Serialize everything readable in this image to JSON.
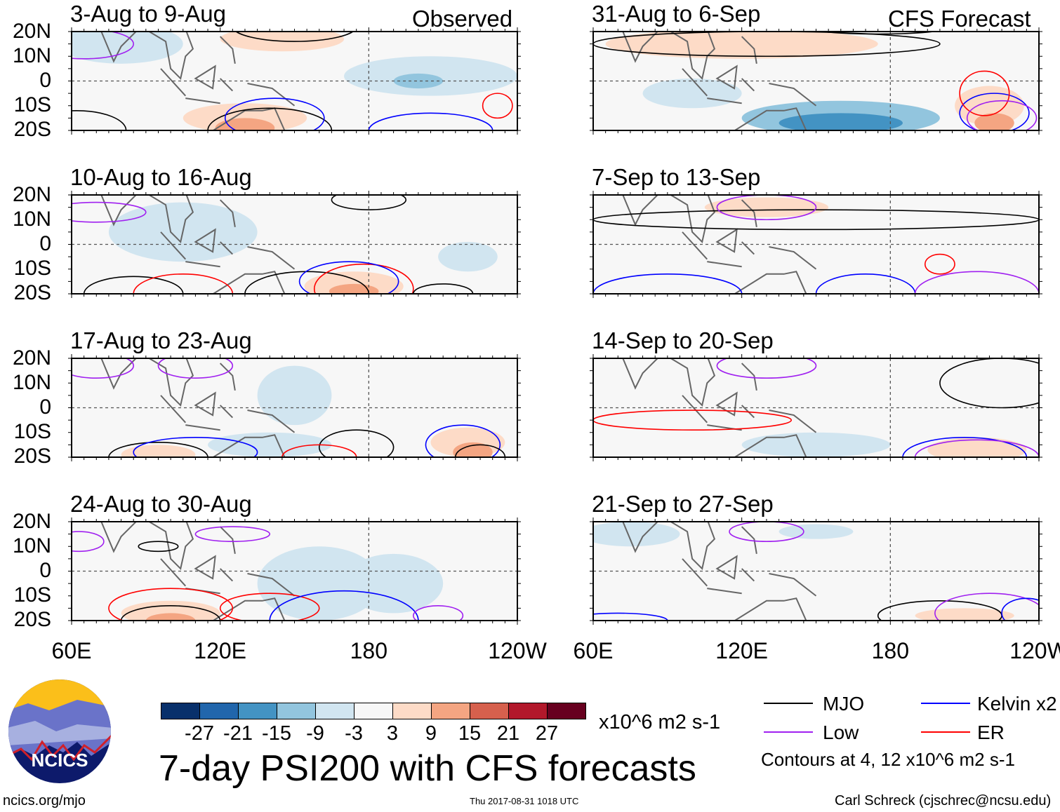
{
  "chart_data": {
    "type": "heatmap",
    "title": "7-day PSI200 with CFS forecasts",
    "units": "x10^6 m2 s-1",
    "column_headers": [
      "Observed",
      "CFS Forecast"
    ],
    "x_ticks": [
      "60E",
      "120E",
      "180",
      "120W"
    ],
    "y_ticks": [
      "20N",
      "10N",
      "0",
      "10S",
      "20S"
    ],
    "xlim_deg_east": [
      60,
      240
    ],
    "ylim_deg": [
      -20,
      20
    ],
    "colorbar": {
      "labels": [
        "-27",
        "-21",
        "-15",
        "-9",
        "-3",
        "3",
        "9",
        "15",
        "21",
        "27"
      ],
      "colors": [
        "#08306b",
        "#2166ac",
        "#4393c3",
        "#92c5de",
        "#d1e5f0",
        "#f7f7f7",
        "#fddbc7",
        "#f4a582",
        "#d6604d",
        "#b2182b",
        "#67001f"
      ]
    },
    "legend": {
      "items": [
        {
          "label": "MJO",
          "color": "#000000"
        },
        {
          "label": "Kelvin x2",
          "color": "#0000ff"
        },
        {
          "label": "Low",
          "color": "#a020f0"
        },
        {
          "label": "ER",
          "color": "#ff0000"
        }
      ],
      "note": "Contours at 4, 12 x10^6 m2 s-1"
    },
    "panels": [
      {
        "label": "3-Aug to 9-Aug",
        "anom": [
          [
            80,
            15,
            25,
            8,
            -3
          ],
          [
            205,
            2,
            35,
            8,
            -3
          ],
          [
            200,
            0,
            10,
            3,
            -9
          ],
          [
            130,
            -15,
            25,
            6,
            6
          ],
          [
            130,
            -19,
            12,
            4,
            12
          ],
          [
            145,
            17,
            25,
            5,
            4
          ],
          [
            225,
            -15,
            8,
            6,
            3
          ]
        ],
        "contours": [
          [
            "MJO",
            140,
            -20,
            25,
            9
          ],
          [
            "MJO",
            150,
            22,
            25,
            6
          ],
          [
            "Kelvin",
            142,
            -15,
            20,
            8
          ],
          [
            "ER",
            232,
            -10,
            6,
            5
          ],
          [
            "Low",
            65,
            15,
            20,
            6
          ],
          [
            "MJO",
            62,
            -20,
            20,
            8
          ],
          [
            "Kelvin",
            205,
            -20,
            25,
            7
          ]
        ]
      },
      {
        "label": "31-Aug to 6-Sep",
        "anom": [
          [
            120,
            15,
            55,
            6,
            4
          ],
          [
            130,
            15,
            25,
            4,
            9
          ],
          [
            160,
            -15,
            40,
            7,
            -9
          ],
          [
            160,
            -17,
            25,
            4,
            -15
          ],
          [
            220,
            -10,
            14,
            8,
            6
          ],
          [
            222,
            -17,
            8,
            4,
            15
          ],
          [
            100,
            -5,
            20,
            6,
            -3
          ]
        ],
        "contours": [
          [
            "MJO",
            130,
            15,
            70,
            5
          ],
          [
            "Kelvin",
            222,
            -13,
            14,
            8
          ],
          [
            "ER",
            218,
            -5,
            10,
            9
          ],
          [
            "Low",
            225,
            -15,
            14,
            7
          ],
          [
            "MJO",
            175,
            22,
            30,
            3
          ]
        ]
      },
      {
        "label": "10-Aug to 16-Aug",
        "anom": [
          [
            150,
            15,
            30,
            6,
            3
          ],
          [
            105,
            5,
            30,
            12,
            -3
          ],
          [
            155,
            -10,
            30,
            8,
            3
          ],
          [
            174,
            -17,
            20,
            6,
            9
          ],
          [
            174,
            -19,
            10,
            3,
            15
          ],
          [
            220,
            -5,
            12,
            6,
            -3
          ]
        ],
        "contours": [
          [
            "MJO",
            85,
            -20,
            20,
            7
          ],
          [
            "MJO",
            155,
            -20,
            25,
            9
          ],
          [
            "ER",
            105,
            -20,
            20,
            8
          ],
          [
            "ER",
            178,
            -18,
            20,
            10
          ],
          [
            "Kelvin",
            172,
            -15,
            20,
            8
          ],
          [
            "Low",
            70,
            13,
            20,
            4
          ],
          [
            "MJO",
            180,
            18,
            15,
            4
          ],
          [
            "MJO",
            210,
            -20,
            12,
            4
          ]
        ]
      },
      {
        "label": "7-Sep to 13-Sep",
        "anom": [
          [
            150,
            15,
            90,
            5,
            3
          ],
          [
            130,
            15,
            25,
            4,
            9
          ],
          [
            200,
            -14,
            25,
            5,
            3
          ],
          [
            160,
            -12,
            25,
            6,
            3
          ]
        ],
        "contours": [
          [
            "MJO",
            150,
            10,
            90,
            4
          ],
          [
            "Low",
            130,
            15,
            20,
            5
          ],
          [
            "ER",
            200,
            -8,
            6,
            4
          ],
          [
            "Kelvin",
            170,
            -20,
            20,
            8
          ],
          [
            "Kelvin",
            90,
            -20,
            30,
            8
          ],
          [
            "Low",
            215,
            -20,
            25,
            9
          ]
        ]
      },
      {
        "label": "17-Aug to 23-Aug",
        "anom": [
          [
            95,
            -10,
            20,
            10,
            3
          ],
          [
            95,
            -19,
            15,
            4,
            9
          ],
          [
            140,
            -15,
            25,
            5,
            -3
          ],
          [
            220,
            -14,
            15,
            6,
            6
          ],
          [
            222,
            -18,
            8,
            4,
            15
          ],
          [
            150,
            5,
            15,
            12,
            -3
          ]
        ],
        "contours": [
          [
            "MJO",
            95,
            -20,
            20,
            6
          ],
          [
            "Kelvin",
            110,
            -18,
            25,
            6
          ],
          [
            "MJO",
            175,
            -16,
            15,
            7
          ],
          [
            "ER",
            160,
            -20,
            15,
            5
          ],
          [
            "Kelvin",
            218,
            -15,
            15,
            8
          ],
          [
            "MJO",
            225,
            -20,
            10,
            5
          ],
          [
            "Low",
            70,
            17,
            15,
            5
          ],
          [
            "Low",
            110,
            17,
            15,
            5
          ]
        ]
      },
      {
        "label": "14-Sep to 20-Sep",
        "anom": [
          [
            100,
            5,
            45,
            10,
            3
          ],
          [
            135,
            15,
            25,
            6,
            3
          ],
          [
            210,
            -10,
            40,
            8,
            3
          ],
          [
            215,
            -17,
            20,
            5,
            9
          ],
          [
            150,
            -15,
            30,
            5,
            -3
          ]
        ],
        "contours": [
          [
            "ER",
            100,
            -5,
            40,
            4
          ],
          [
            "Low",
            130,
            17,
            20,
            5
          ],
          [
            "Kelvin",
            210,
            -20,
            25,
            8
          ],
          [
            "Low",
            215,
            -20,
            25,
            7
          ],
          [
            "MJO",
            225,
            10,
            25,
            10
          ]
        ]
      },
      {
        "label": "24-Aug to 30-Aug",
        "anom": [
          [
            95,
            -5,
            25,
            15,
            3
          ],
          [
            100,
            -17,
            20,
            5,
            9
          ],
          [
            100,
            -20,
            10,
            3,
            15
          ],
          [
            160,
            -5,
            25,
            15,
            -3
          ],
          [
            190,
            -5,
            20,
            12,
            -3
          ],
          [
            150,
            15,
            20,
            4,
            3
          ]
        ],
        "contours": [
          [
            "MJO",
            100,
            -20,
            20,
            6
          ],
          [
            "ER",
            100,
            -15,
            25,
            8
          ],
          [
            "ER",
            140,
            -15,
            20,
            6
          ],
          [
            "Kelvin",
            170,
            -20,
            30,
            12
          ],
          [
            "Low",
            208,
            -18,
            10,
            4
          ],
          [
            "Low",
            63,
            12,
            10,
            4
          ],
          [
            "MJO",
            95,
            10,
            8,
            2
          ],
          [
            "Low",
            125,
            15,
            15,
            3
          ]
        ]
      },
      {
        "label": "21-Sep to 27-Sep",
        "anom": [
          [
            210,
            -10,
            40,
            8,
            3
          ],
          [
            210,
            -18,
            20,
            3,
            9
          ],
          [
            75,
            15,
            20,
            5,
            -3
          ],
          [
            150,
            16,
            15,
            3,
            -3
          ]
        ],
        "contours": [
          [
            "MJO",
            200,
            -18,
            25,
            6
          ],
          [
            "Low",
            220,
            -17,
            22,
            8
          ],
          [
            "Kelvin",
            235,
            -17,
            10,
            6
          ],
          [
            "Kelvin",
            70,
            -20,
            20,
            3
          ],
          [
            "Low",
            130,
            16,
            15,
            4
          ]
        ]
      }
    ]
  },
  "logo": {
    "text": "NCICS"
  },
  "footer": {
    "left": "ncics.org/mjo",
    "center": "Thu 2017-08-31 1018 UTC",
    "right": "Carl Schreck (cjschrec@ncsu.edu)"
  }
}
